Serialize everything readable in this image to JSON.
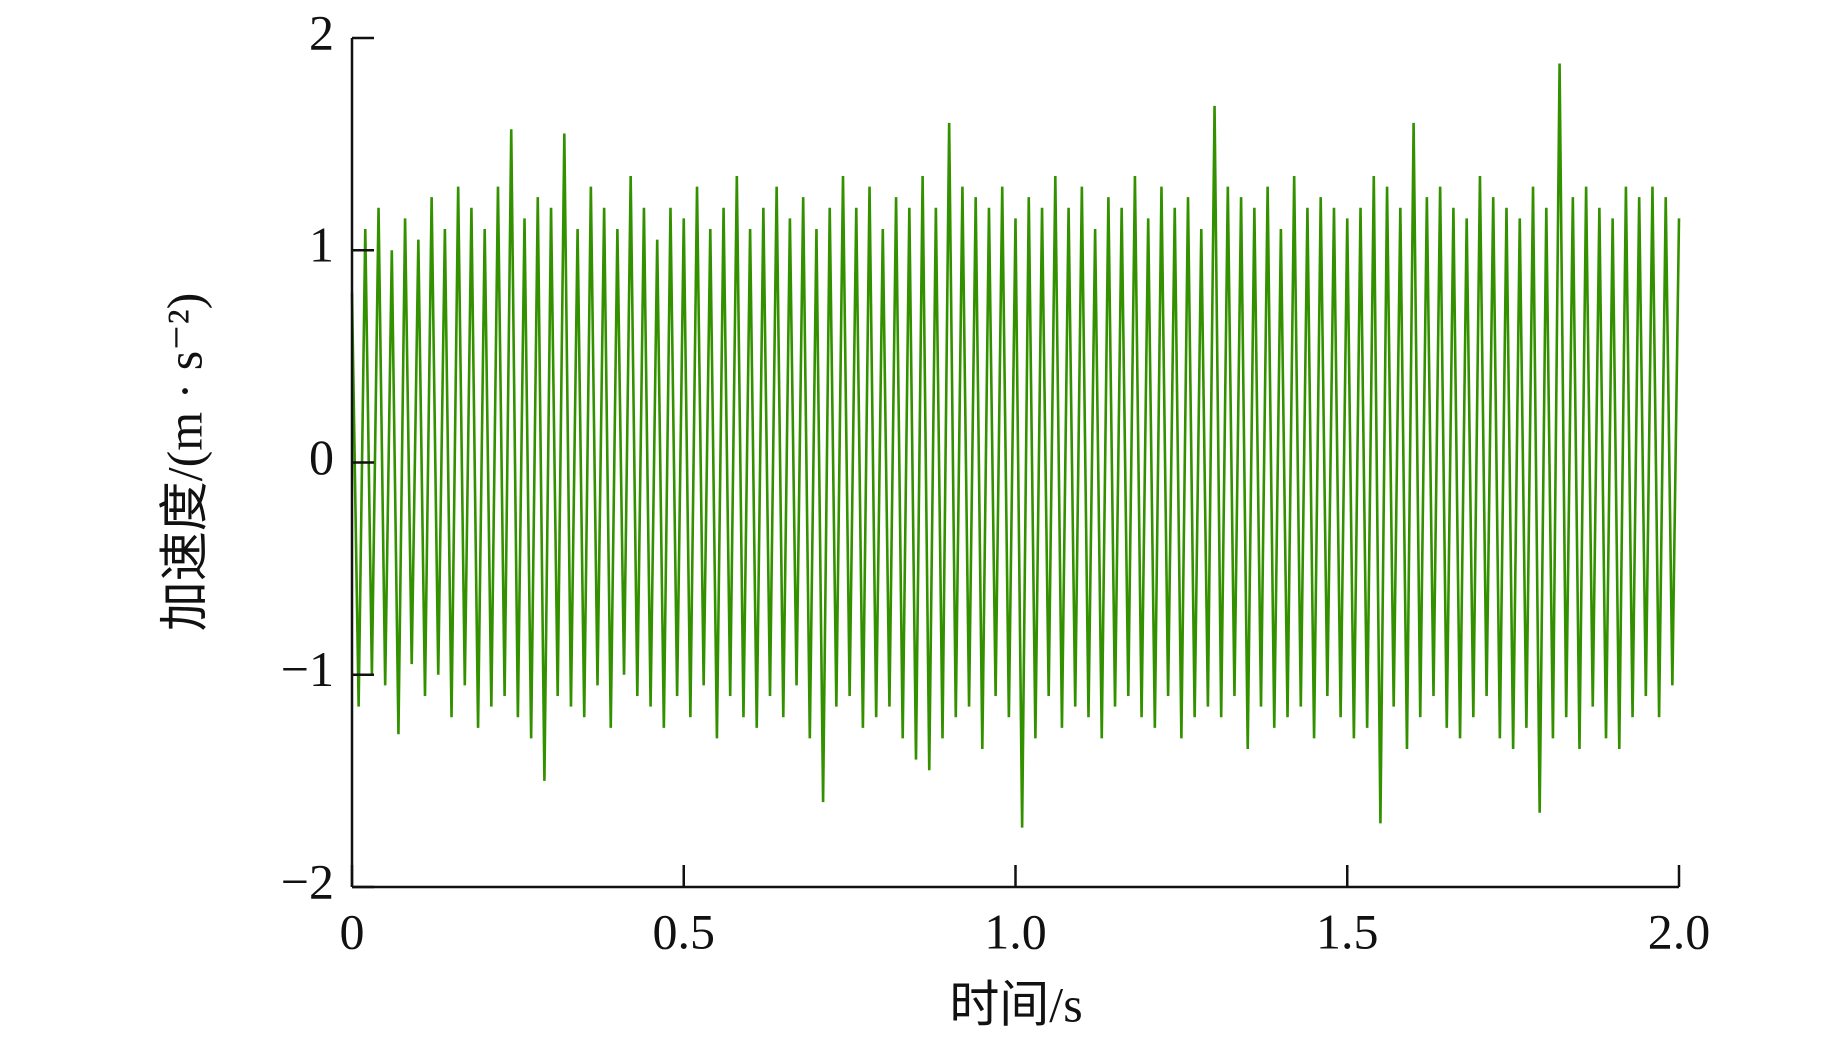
{
  "chart_data": {
    "type": "line",
    "xlabel": "时间/s",
    "ylabel": "加速度/(m · s⁻²)",
    "color": "#339100",
    "xlim": [
      0,
      2
    ],
    "ylim": [
      -2,
      2
    ],
    "xticks": [
      0,
      0.5,
      {
        "value": 1,
        "label": "1.0"
      },
      1.5,
      {
        "value": 2,
        "label": "2.0"
      }
    ],
    "yticks": [
      2,
      1,
      0,
      {
        "value": -1,
        "label": "−1"
      },
      {
        "value": -2,
        "label": "−2"
      }
    ],
    "x": [
      0,
      0.01,
      0.02,
      0.03,
      0.04,
      0.05,
      0.06,
      0.07,
      0.08,
      0.09,
      0.1,
      0.11,
      0.12,
      0.13,
      0.14,
      0.15,
      0.16,
      0.17,
      0.18,
      0.19,
      0.2,
      0.21,
      0.22,
      0.23,
      0.24,
      0.25,
      0.26,
      0.27,
      0.28,
      0.29,
      0.3,
      0.31,
      0.32,
      0.33,
      0.34,
      0.35,
      0.36,
      0.37,
      0.38,
      0.39,
      0.4,
      0.41,
      0.42,
      0.43,
      0.44,
      0.45,
      0.46,
      0.47,
      0.48,
      0.49,
      0.5,
      0.51,
      0.52,
      0.53,
      0.54,
      0.55,
      0.56,
      0.57,
      0.58,
      0.59,
      0.6,
      0.61,
      0.62,
      0.63,
      0.64,
      0.65,
      0.66,
      0.67,
      0.68,
      0.69,
      0.7,
      0.71,
      0.72,
      0.73,
      0.74,
      0.75,
      0.76,
      0.77,
      0.78,
      0.79,
      0.8,
      0.81,
      0.82,
      0.83,
      0.84,
      0.85,
      0.86,
      0.87,
      0.88,
      0.89,
      0.9,
      0.91,
      0.92,
      0.93,
      0.94,
      0.95,
      0.96,
      0.97,
      0.98,
      0.99,
      1,
      1.01,
      1.02,
      1.03,
      1.04,
      1.05,
      1.06,
      1.07,
      1.08,
      1.09,
      1.1,
      1.11,
      1.12,
      1.13,
      1.14,
      1.15,
      1.16,
      1.17,
      1.18,
      1.19,
      1.2,
      1.21,
      1.22,
      1.23,
      1.24,
      1.25,
      1.26,
      1.27,
      1.28,
      1.29,
      1.3,
      1.31,
      1.32,
      1.33,
      1.34,
      1.35,
      1.36,
      1.37,
      1.38,
      1.39,
      1.4,
      1.41,
      1.42,
      1.43,
      1.44,
      1.45,
      1.46,
      1.47,
      1.48,
      1.49,
      1.5,
      1.51,
      1.52,
      1.53,
      1.54,
      1.55,
      1.56,
      1.57,
      1.58,
      1.59,
      1.6,
      1.61,
      1.62,
      1.63,
      1.64,
      1.65,
      1.66,
      1.67,
      1.68,
      1.69,
      1.7,
      1.71,
      1.72,
      1.73,
      1.74,
      1.75,
      1.76,
      1.77,
      1.78,
      1.79,
      1.8,
      1.81,
      1.82,
      1.83,
      1.84,
      1.85,
      1.86,
      1.87,
      1.88,
      1.89,
      1.9,
      1.91,
      1.92,
      1.93,
      1.94,
      1.95,
      1.96,
      1.97,
      1.98,
      1.99,
      2
    ],
    "values": [
      0.8,
      -1.15,
      1.1,
      -1.0,
      1.2,
      -1.05,
      1.0,
      -1.28,
      1.15,
      -0.95,
      1.05,
      -1.1,
      1.25,
      -1.0,
      1.1,
      -1.2,
      1.3,
      -1.05,
      1.2,
      -1.25,
      1.1,
      -1.15,
      1.3,
      -1.1,
      1.57,
      -1.2,
      1.15,
      -1.3,
      1.25,
      -1.5,
      1.2,
      -1.1,
      1.55,
      -1.15,
      1.1,
      -1.2,
      1.3,
      -1.05,
      1.2,
      -1.25,
      1.1,
      -1.0,
      1.35,
      -1.1,
      1.2,
      -1.15,
      1.05,
      -1.25,
      1.2,
      -1.1,
      1.15,
      -1.2,
      1.3,
      -1.05,
      1.1,
      -1.3,
      1.2,
      -1.1,
      1.35,
      -1.2,
      1.1,
      -1.25,
      1.2,
      -1.1,
      1.3,
      -1.2,
      1.15,
      -1.05,
      1.25,
      -1.3,
      1.1,
      -1.6,
      1.2,
      -1.15,
      1.35,
      -1.1,
      1.2,
      -1.25,
      1.3,
      -1.2,
      1.1,
      -1.15,
      1.25,
      -1.3,
      1.2,
      -1.4,
      1.35,
      -1.45,
      1.2,
      -1.3,
      1.6,
      -1.2,
      1.3,
      -1.15,
      1.25,
      -1.35,
      1.2,
      -1.1,
      1.3,
      -1.2,
      1.15,
      -1.72,
      1.25,
      -1.3,
      1.2,
      -1.1,
      1.35,
      -1.25,
      1.2,
      -1.15,
      1.3,
      -1.2,
      1.1,
      -1.3,
      1.25,
      -1.15,
      1.2,
      -1.1,
      1.35,
      -1.2,
      1.15,
      -1.25,
      1.3,
      -1.1,
      1.2,
      -1.3,
      1.25,
      -1.2,
      1.1,
      -1.15,
      1.68,
      -1.2,
      1.3,
      -1.1,
      1.25,
      -1.35,
      1.2,
      -1.15,
      1.3,
      -1.25,
      1.1,
      -1.2,
      1.35,
      -1.15,
      1.2,
      -1.3,
      1.25,
      -1.1,
      1.2,
      -1.2,
      1.15,
      -1.3,
      1.2,
      -1.25,
      1.35,
      -1.7,
      1.3,
      -1.15,
      1.2,
      -1.35,
      1.6,
      -1.2,
      1.25,
      -1.1,
      1.3,
      -1.25,
      1.2,
      -1.3,
      1.15,
      -1.2,
      1.35,
      -1.1,
      1.25,
      -1.3,
      1.2,
      -1.35,
      1.15,
      -1.25,
      1.3,
      -1.65,
      1.2,
      -1.3,
      1.88,
      -1.2,
      1.25,
      -1.35,
      1.3,
      -1.15,
      1.2,
      -1.3,
      1.15,
      -1.35,
      1.3,
      -1.2,
      1.25,
      -1.1,
      1.3,
      -1.2,
      1.25,
      -1.05,
      1.15
    ]
  }
}
